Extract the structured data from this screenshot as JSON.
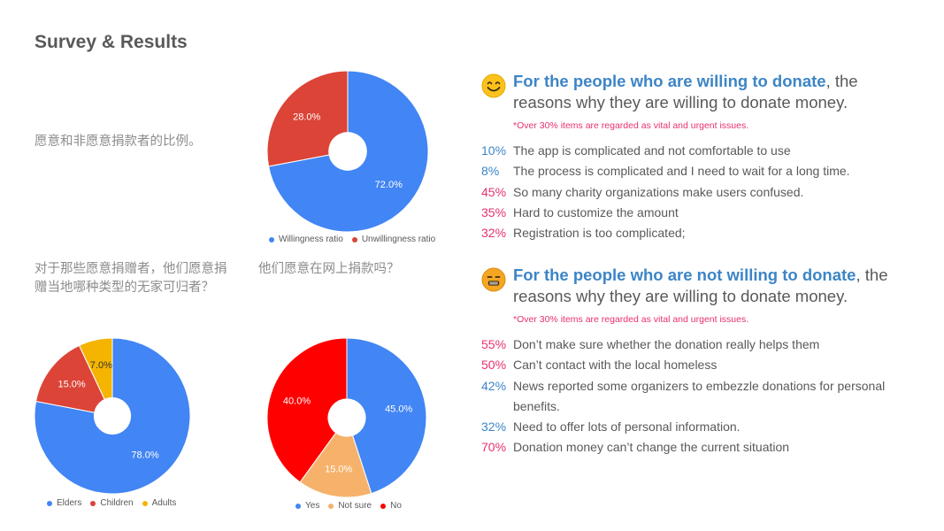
{
  "title": "Survey & Results",
  "questions": {
    "q1": "愿意和非愿意捐款者的比例。",
    "q2": "对于那些愿意捐赠者，他们愿意捐赠当地哪种类型的无家可归者？",
    "q3": "他们愿意在网上捐款吗？"
  },
  "colors": {
    "blue": "#4285f4",
    "red": "#db4437",
    "yellow": "#f4b400",
    "bright_red": "#ff0000",
    "orange": "#f6b26b",
    "accent_blue": "#3d85c6",
    "pink": "#e8306e"
  },
  "chart_data": [
    {
      "type": "pie",
      "donut": true,
      "categories": [
        "Willingness ratio",
        "Unwillingness ratio"
      ],
      "values": [
        72.0,
        28.0
      ],
      "labels": [
        "72.0%",
        "28.0%"
      ],
      "colors": [
        "#4285f4",
        "#db4437"
      ],
      "legend": "bottom"
    },
    {
      "type": "pie",
      "donut": true,
      "categories": [
        "Elders",
        "Children",
        "Adults"
      ],
      "values": [
        78.0,
        15.0,
        7.0
      ],
      "labels": [
        "78.0%",
        "15.0%",
        "7.0%"
      ],
      "colors": [
        "#4285f4",
        "#db4437",
        "#f4b400"
      ],
      "legend": "bottom"
    },
    {
      "type": "pie",
      "donut": true,
      "categories": [
        "Yes",
        "Not sure",
        "No"
      ],
      "values": [
        45.0,
        15.0,
        40.0
      ],
      "labels": [
        "45.0%",
        "15.0%",
        "40.0%"
      ],
      "colors": [
        "#4285f4",
        "#f6b26b",
        "#ff0000"
      ],
      "legend": "bottom"
    }
  ],
  "panels": [
    {
      "emoji": "smiling-face-icon",
      "title_accent": "For the people who are willing to donate",
      "title_rest": ", the reasons why they are willing to donate money.",
      "note": "*Over 30% items are regarded as vital and urgent issues.",
      "reasons": [
        {
          "pct": "10%",
          "text": "The app is complicated and not comfortable to use",
          "color": "#3d85c6"
        },
        {
          "pct": "8%",
          "text": "The process is complicated and I need to wait for a long time.",
          "color": "#3d85c6"
        },
        {
          "pct": "45%",
          "text": "So many charity organizations make users confused.",
          "color": "#e8306e"
        },
        {
          "pct": "35%",
          "text": "Hard to customize the amount",
          "color": "#e8306e"
        },
        {
          "pct": "32%",
          "text": "Registration is too complicated;",
          "color": "#e8306e"
        }
      ]
    },
    {
      "emoji": "frowning-face-icon",
      "title_accent": "For the people who are not willing to donate",
      "title_rest": ", the reasons why they are willing to donate money.",
      "note": "*Over 30% items are regarded as vital and urgent issues.",
      "reasons": [
        {
          "pct": "55%",
          "text": "Don’t make sure whether the donation really helps them",
          "color": "#e8306e"
        },
        {
          "pct": "50%",
          "text": "Can’t contact with the local homeless",
          "color": "#e8306e"
        },
        {
          "pct": "42%",
          "text": "News reported some organizers to embezzle donations for personal benefits.",
          "color": "#3d85c6"
        },
        {
          "pct": "32%",
          "text": "Need to offer lots of personal information.",
          "color": "#3d85c6"
        },
        {
          "pct": "70%",
          "text": "Donation money can’t change the current situation",
          "color": "#e8306e"
        }
      ]
    }
  ]
}
